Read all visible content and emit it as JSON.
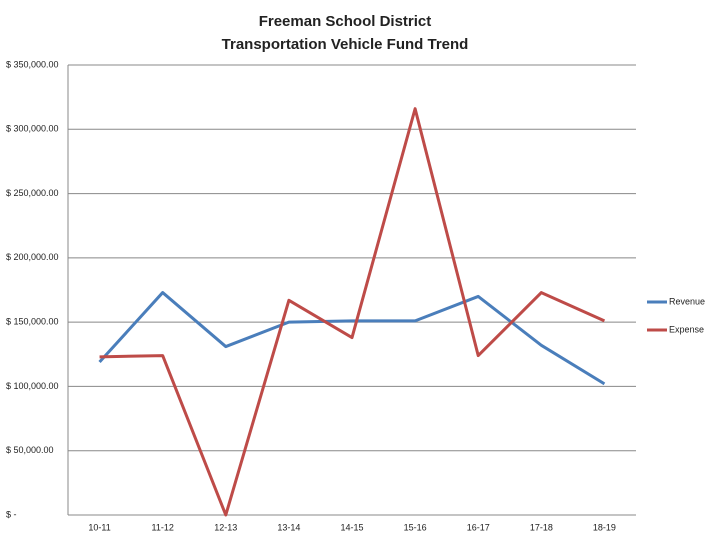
{
  "chart_data": {
    "type": "line",
    "title": [
      "Freeman School District",
      "Transportation Vehicle Fund Trend"
    ],
    "categories": [
      "10-11",
      "11-12",
      "12-13",
      "13-14",
      "14-15",
      "15-16",
      "16-17",
      "17-18",
      "18-19"
    ],
    "series": [
      {
        "name": "Revenue",
        "color": "#4a7ebb",
        "values": [
          119000,
          173000,
          131000,
          150000,
          151000,
          151000,
          170000,
          132000,
          102000
        ]
      },
      {
        "name": "Expense",
        "color": "#be4b48",
        "values": [
          123000,
          124000,
          0,
          167000,
          138000,
          316000,
          124000,
          173000,
          151000
        ]
      }
    ],
    "ylim": [
      0,
      350000
    ],
    "yticks": [
      {
        "value": 0,
        "label": "$ -"
      },
      {
        "value": 50000,
        "label": "$ 50,000.00"
      },
      {
        "value": 100000,
        "label": "$ 100,000.00"
      },
      {
        "value": 150000,
        "label": "$ 150,000.00"
      },
      {
        "value": 200000,
        "label": "$ 200,000.00"
      },
      {
        "value": 250000,
        "label": "$ 250,000.00"
      },
      {
        "value": 300000,
        "label": "$ 300,000.00"
      },
      {
        "value": 350000,
        "label": "$ 350,000.00"
      }
    ],
    "grid": true,
    "legend": "right"
  }
}
